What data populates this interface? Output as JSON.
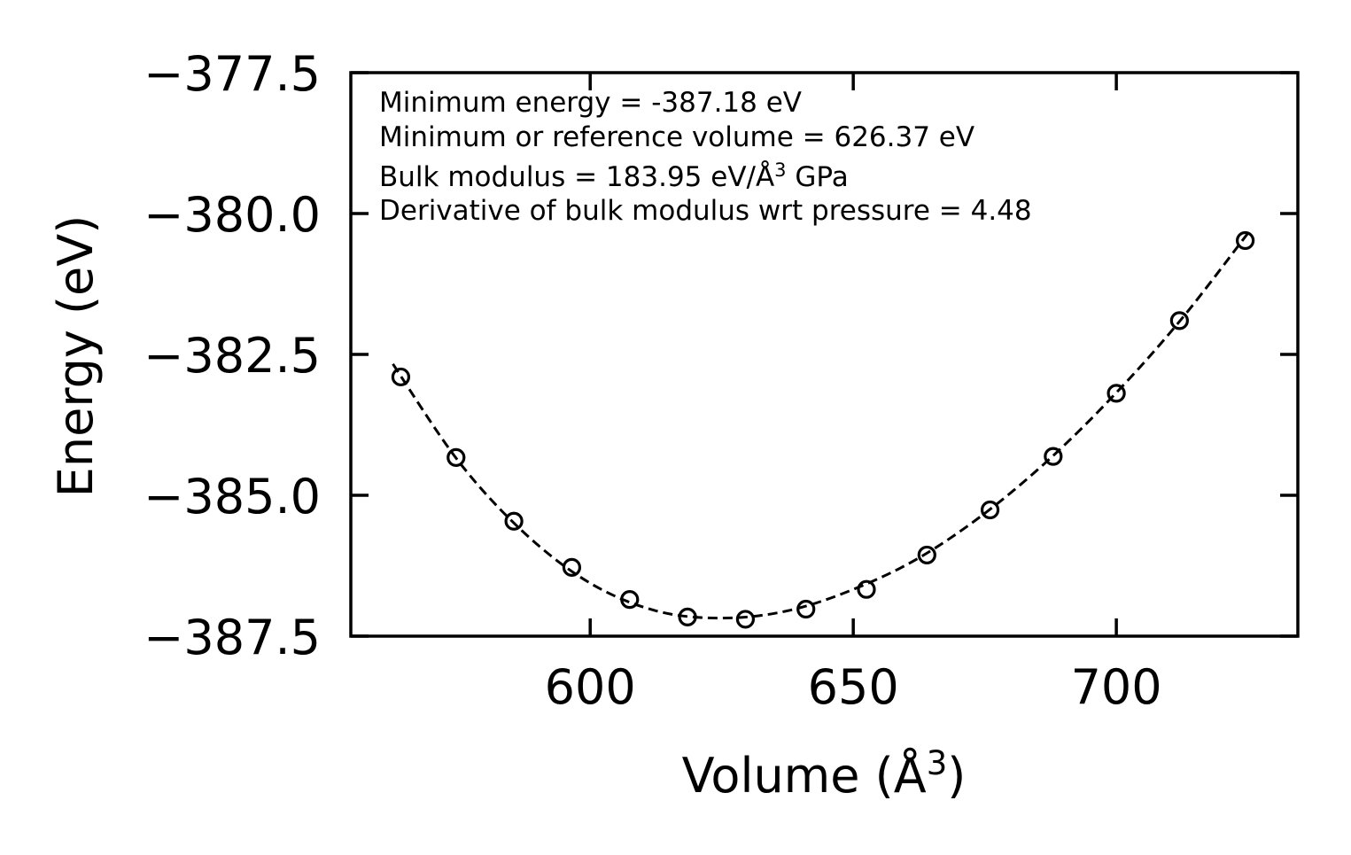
{
  "chart_data": {
    "type": "scatter",
    "xlabel_main": "Volume (Å",
    "xlabel_sup": "3",
    "xlabel_end": ")",
    "ylabel": "Energy (eV)",
    "xlim": [
      554.5,
      734.5
    ],
    "ylim": [
      -387.5,
      -377.5
    ],
    "xticks": [
      600,
      650,
      700
    ],
    "xtick_labels": [
      "600",
      "650",
      "700"
    ],
    "yticks": [
      -377.5,
      -380.0,
      -382.5,
      -385.0,
      -387.5
    ],
    "ytick_labels": [
      "−377.5",
      "−380.0",
      "−382.5",
      "−385.0",
      "−387.5"
    ],
    "annotations": {
      "line1": "Minimum energy = -387.18 eV",
      "line2": "Minimum or reference volume = 626.37 eV",
      "line3_main": "Bulk modulus = 183.95 eV/Å",
      "line3_sup": "3",
      "line3_end": " GPa",
      "line4": "Derivative of bulk modulus wrt pressure = 4.48"
    },
    "series": [
      {
        "name": "data",
        "marker": "open-circle",
        "x": [
          564,
          574.5,
          585.5,
          596.5,
          607.5,
          618.5,
          629.5,
          641,
          652.5,
          664,
          676,
          688,
          700,
          712,
          724.5
        ],
        "y": [
          -382.9,
          -384.33,
          -385.46,
          -386.28,
          -386.85,
          -387.16,
          -387.2,
          -387.02,
          -386.67,
          -386.06,
          -385.26,
          -384.31,
          -383.19,
          -381.9,
          -380.48
        ]
      },
      {
        "name": "fit",
        "style": "dashed",
        "x": [
          562.5,
          575,
          587.5,
          600,
          612.5,
          625,
          637.5,
          650,
          662.5,
          675,
          687.5,
          700,
          712.5,
          725
        ],
        "y": [
          -382.67,
          -384.4,
          -385.67,
          -386.56,
          -387.05,
          -387.18,
          -387.05,
          -386.67,
          -386.11,
          -385.32,
          -384.34,
          -383.18,
          -381.86,
          -380.35
        ]
      }
    ]
  }
}
